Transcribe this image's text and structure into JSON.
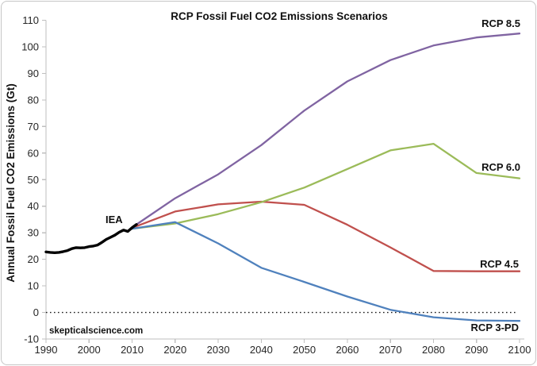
{
  "window": {
    "background_color": "#FFFFFF",
    "border_color": "#C6C6C6"
  },
  "chart_data": {
    "type": "line",
    "title": "RCP Fossil Fuel CO2 Emissions Scenarios",
    "xlabel": "",
    "ylabel": "Annual Fossil Fuel CO2 Emissions (Gt)",
    "watermark": "skepticalscience.com",
    "xlim": [
      1990,
      2100
    ],
    "ylim": [
      -10,
      110
    ],
    "x_ticks": [
      1990,
      2000,
      2010,
      2020,
      2030,
      2040,
      2050,
      2060,
      2070,
      2080,
      2090,
      2100
    ],
    "y_ticks": [
      -10,
      0,
      10,
      20,
      30,
      40,
      50,
      60,
      70,
      80,
      90,
      100,
      110
    ],
    "grid": false,
    "zero_line": {
      "style": "dotted",
      "value": 0,
      "color": "#1a1a1a"
    },
    "axis_color": "#BFBFBF",
    "tick_label_color": "#262626",
    "legend_position": "end-of-line-labels",
    "series": [
      {
        "id": "rcp-8-5",
        "label": "RCP 8.5",
        "color": "#8064A2",
        "width": 2.3,
        "x": [
          2010,
          2020,
          2030,
          2040,
          2050,
          2060,
          2070,
          2080,
          2090,
          2100
        ],
        "values": [
          32,
          43,
          52,
          63,
          76,
          87,
          95,
          100.5,
          103.5,
          105
        ]
      },
      {
        "id": "rcp-4-5",
        "label": "RCP 4.5",
        "color": "#C0504D",
        "width": 2.3,
        "x": [
          2010,
          2020,
          2030,
          2040,
          2050,
          2060,
          2070,
          2080,
          2090,
          2100
        ],
        "values": [
          31.8,
          38,
          40.7,
          41.7,
          40.5,
          33,
          24.5,
          15.6,
          15.5,
          15.5
        ]
      },
      {
        "id": "rcp-6-0",
        "label": "RCP 6.0",
        "color": "#9BBB59",
        "width": 2.3,
        "x": [
          2010,
          2020,
          2030,
          2040,
          2050,
          2060,
          2070,
          2080,
          2090,
          2100
        ],
        "values": [
          31.5,
          33.5,
          37,
          41.5,
          47,
          54,
          61,
          63.5,
          52.5,
          50.5
        ]
      },
      {
        "id": "rcp-3-pd",
        "label": "RCP 3-PD",
        "color": "#4F81BD",
        "width": 2.3,
        "x": [
          2010,
          2020,
          2030,
          2040,
          2050,
          2060,
          2070,
          2080,
          2090,
          2100
        ],
        "values": [
          31.5,
          34,
          26,
          16.8,
          11.5,
          6,
          1,
          -1.8,
          -3,
          -3.2
        ]
      },
      {
        "id": "iea",
        "label": "IEA",
        "color": "#000000",
        "width": 3.4,
        "x": [
          1990,
          1991,
          1992,
          1993,
          1994,
          1995,
          1996,
          1997,
          1998,
          1999,
          2000,
          2001,
          2002,
          2003,
          2004,
          2005,
          2006,
          2007,
          2008,
          2009,
          2010,
          2011
        ],
        "values": [
          22.8,
          22.6,
          22.5,
          22.6,
          22.9,
          23.3,
          24.0,
          24.4,
          24.3,
          24.4,
          24.8,
          25.0,
          25.4,
          26.4,
          27.5,
          28.3,
          29.1,
          30.2,
          31.0,
          30.5,
          31.9,
          33.1
        ]
      }
    ]
  }
}
